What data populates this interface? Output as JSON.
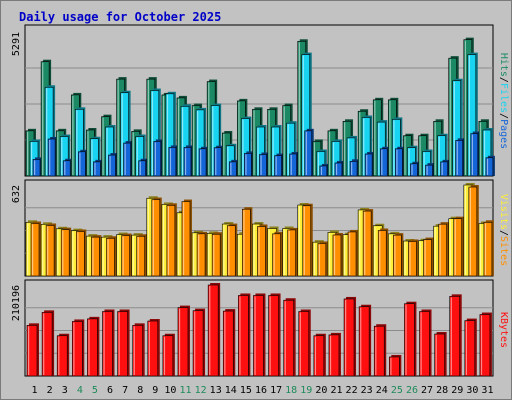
{
  "title": "Daily usage for October 2025",
  "colors": {
    "hits": "#1b8a64",
    "files": "#18d4f0",
    "pages": "#1466d8",
    "visits": "#ffee38",
    "sites": "#ff8f00",
    "kbytes": "#ff1010",
    "title": "#0000c8",
    "weekend_day": "#1e8a5a",
    "weekday_day": "#000000",
    "background": "#c2c2c2",
    "gridline": "#8c8c8c"
  },
  "chart_data": [
    {
      "type": "bar",
      "panel": "hits-files-pages",
      "categories": [
        "1",
        "2",
        "3",
        "4",
        "5",
        "6",
        "7",
        "8",
        "9",
        "10",
        "11",
        "12",
        "13",
        "14",
        "15",
        "16",
        "17",
        "18",
        "19",
        "20",
        "21",
        "22",
        "23",
        "24",
        "25",
        "26",
        "27",
        "28",
        "29",
        "30",
        "31"
      ],
      "ytick_label": "5291",
      "ylim": [
        0,
        5291
      ],
      "grid": true,
      "legend_labels": [
        "Pages",
        "Files",
        "Hits"
      ],
      "series": [
        {
          "name": "Hits",
          "values": [
            1660,
            4200,
            1660,
            2980,
            1690,
            2180,
            3560,
            1640,
            3560,
            2980,
            2870,
            2590,
            3470,
            1580,
            2760,
            2450,
            2450,
            2590,
            4950,
            1270,
            1660,
            2010,
            2380,
            2800,
            2800,
            1480,
            1480,
            2010,
            4330,
            5010,
            2010
          ]
        },
        {
          "name": "Files",
          "values": [
            1270,
            3260,
            1450,
            2450,
            1370,
            1800,
            3060,
            1450,
            3140,
            3020,
            2560,
            2430,
            2590,
            1110,
            2110,
            1800,
            1800,
            1940,
            4460,
            900,
            1270,
            1400,
            2150,
            1980,
            2080,
            1040,
            900,
            1480,
            3500,
            4460,
            1690
          ]
        },
        {
          "name": "Pages",
          "values": [
            610,
            1360,
            560,
            890,
            520,
            770,
            1210,
            560,
            1270,
            1050,
            1050,
            1000,
            1040,
            520,
            830,
            790,
            750,
            810,
            1660,
            370,
            480,
            540,
            810,
            1000,
            1000,
            450,
            400,
            520,
            1310,
            1560,
            670
          ]
        }
      ]
    },
    {
      "type": "bar",
      "panel": "visits-sites",
      "categories": [
        "1",
        "2",
        "3",
        "4",
        "5",
        "6",
        "7",
        "8",
        "9",
        "10",
        "11",
        "12",
        "13",
        "14",
        "15",
        "16",
        "17",
        "18",
        "19",
        "20",
        "21",
        "22",
        "23",
        "24",
        "25",
        "26",
        "27",
        "28",
        "29",
        "30",
        "31"
      ],
      "ytick_label": "632",
      "ylim": [
        0,
        632
      ],
      "grid": true,
      "legend_labels": [
        "Sites",
        "Visits"
      ],
      "series": [
        {
          "name": "Visits",
          "values": [
            373,
            359,
            328,
            315,
            277,
            270,
            288,
            284,
            540,
            497,
            439,
            300,
            296,
            361,
            290,
            361,
            330,
            330,
            493,
            235,
            303,
            287,
            459,
            349,
            293,
            243,
            245,
            346,
            398,
            632,
            365
          ]
        },
        {
          "name": "Sites",
          "values": [
            365,
            351,
            322,
            309,
            270,
            262,
            281,
            276,
            531,
            491,
            517,
            293,
            290,
            350,
            464,
            344,
            293,
            320,
            488,
            226,
            285,
            306,
            451,
            316,
            284,
            240,
            253,
            360,
            398,
            618,
            373
          ]
        }
      ]
    },
    {
      "type": "bar",
      "panel": "kbytes",
      "categories": [
        "1",
        "2",
        "3",
        "4",
        "5",
        "6",
        "7",
        "8",
        "9",
        "10",
        "11",
        "12",
        "13",
        "14",
        "15",
        "16",
        "17",
        "18",
        "19",
        "20",
        "21",
        "22",
        "23",
        "24",
        "25",
        "26",
        "27",
        "28",
        "29",
        "30",
        "31"
      ],
      "ytick_label": "210196",
      "ylim": [
        0,
        210196
      ],
      "grid": true,
      "legend_labels": [
        "KBytes"
      ],
      "series": [
        {
          "name": "KBytes",
          "values": [
            117000,
            147000,
            93000,
            126000,
            132000,
            149000,
            149000,
            117000,
            127000,
            93000,
            158000,
            151000,
            210196,
            150000,
            186000,
            186000,
            186000,
            175000,
            149000,
            93000,
            95000,
            178000,
            160000,
            115000,
            44000,
            167000,
            149000,
            97000,
            184000,
            128000,
            142000
          ]
        }
      ]
    }
  ]
}
